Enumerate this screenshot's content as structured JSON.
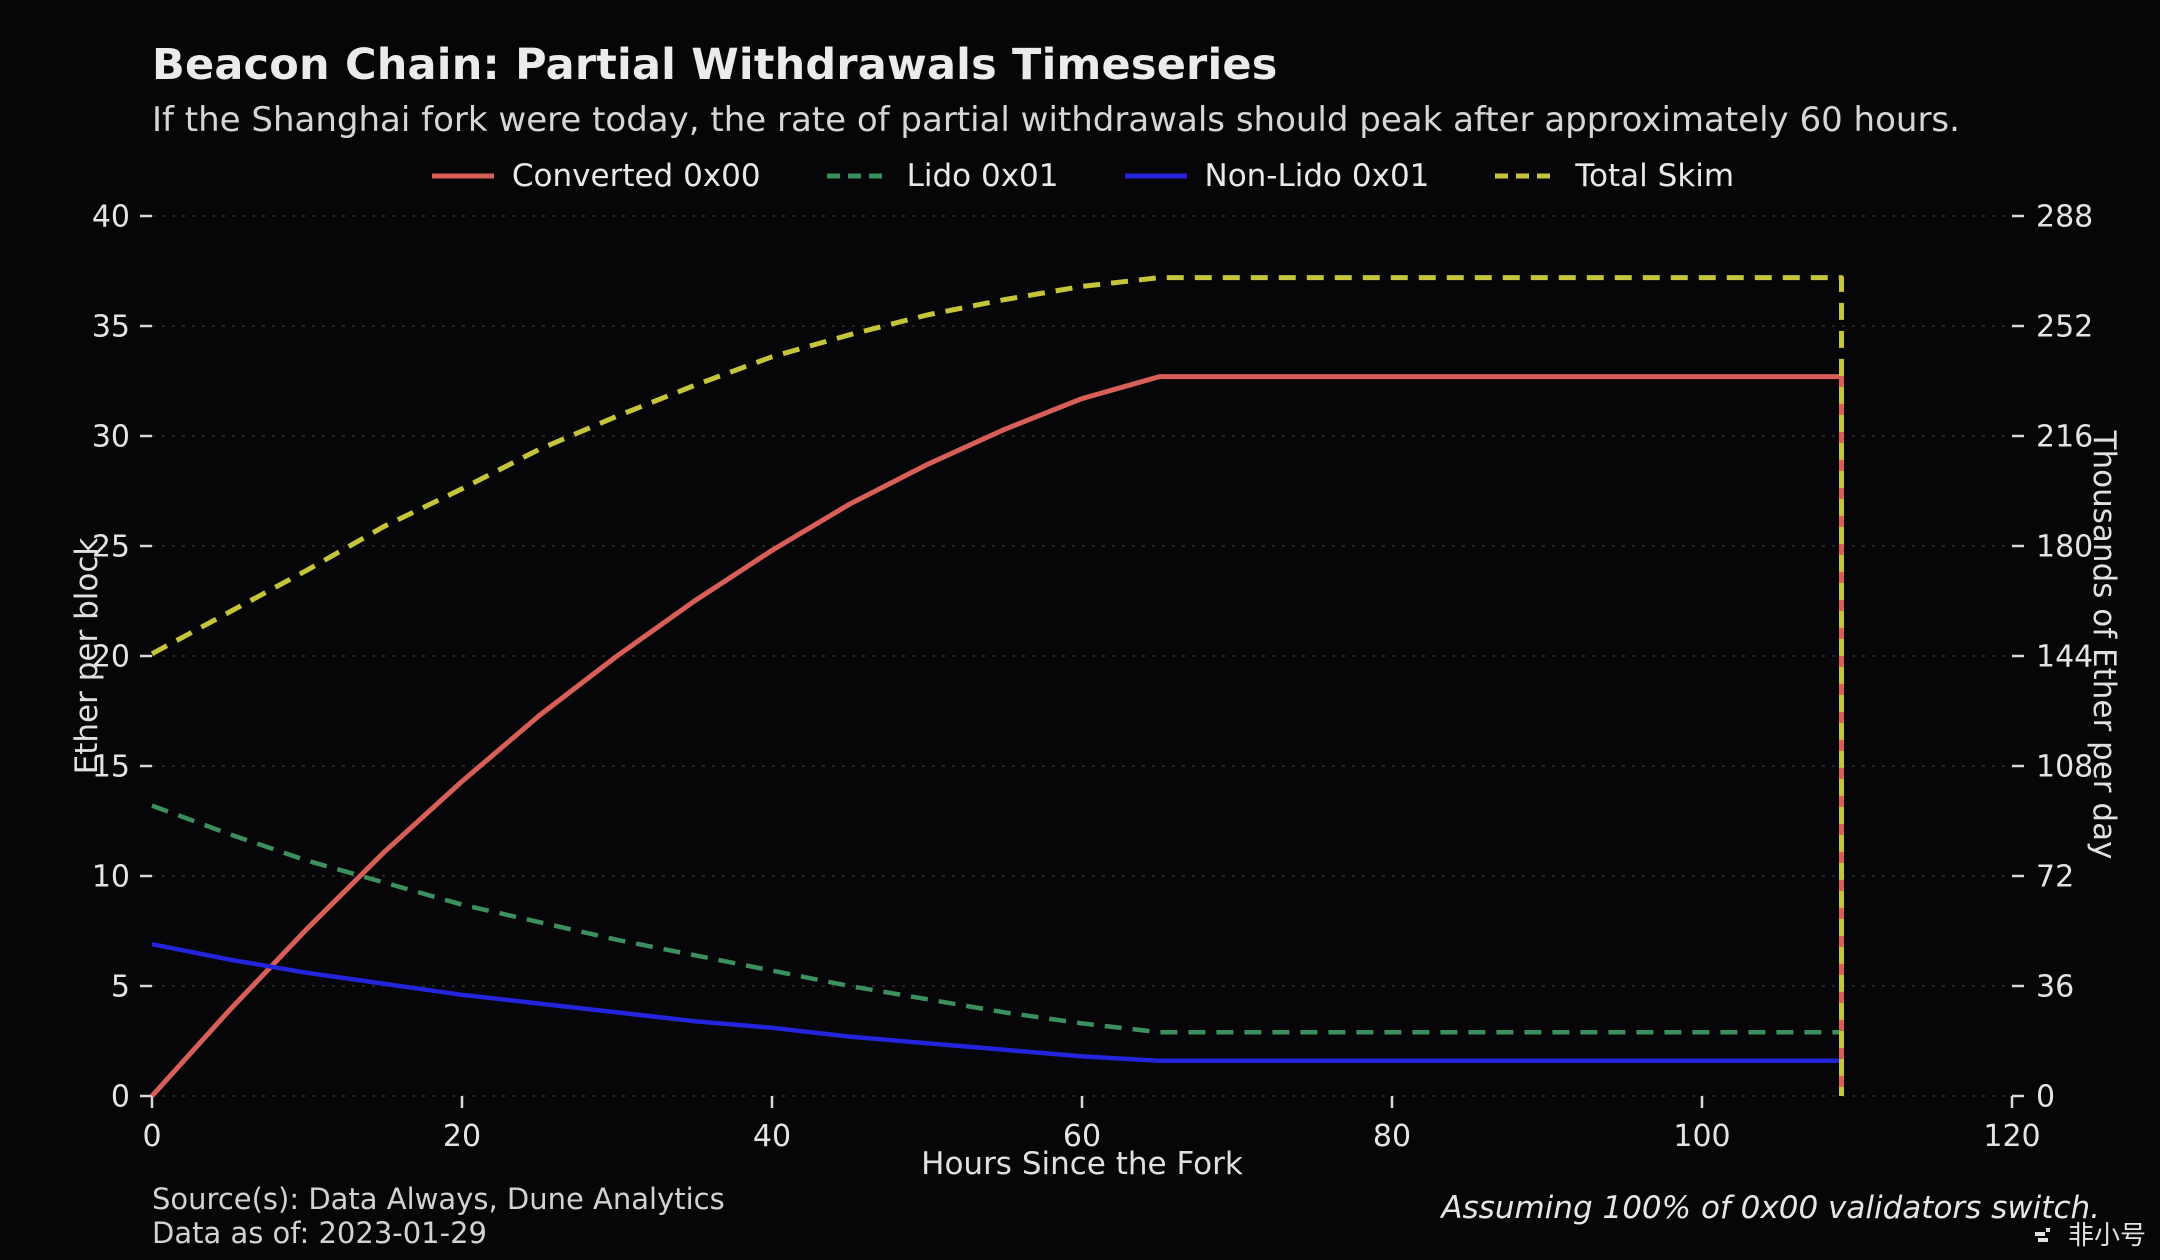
{
  "header": {
    "title": "Beacon Chain: Partial Withdrawals Timeseries",
    "subtitle": "If the Shanghai fork were today, the rate of partial withdrawals should peak after approximately 60 hours."
  },
  "footer": {
    "source": "Source(s): Data Always, Dune Analytics",
    "data_as_of": "Data as of: 2023-01-29",
    "note": "Assuming 100% of 0x00 validators switch.",
    "watermark": "非小号"
  },
  "chart_data": {
    "type": "line",
    "title": "Beacon Chain: Partial Withdrawals Timeseries",
    "subtitle": "If the Shanghai fork were today, the rate of partial withdrawals should peak after approximately 60 hours.",
    "xlabel": "Hours Since the Fork",
    "ylabel_left": "Ether per block",
    "ylabel_right": "Thousands of Ether per day",
    "xlim": [
      0,
      120
    ],
    "ylim_left": [
      0,
      40
    ],
    "ylim_right": [
      0,
      288
    ],
    "x_ticks": [
      0,
      20,
      40,
      60,
      80,
      100,
      120
    ],
    "y_ticks_left": [
      0,
      5,
      10,
      15,
      20,
      25,
      30,
      35,
      40
    ],
    "y_ticks_right": [
      0,
      36,
      72,
      108,
      144,
      180,
      216,
      252,
      288
    ],
    "grid": "horizontal-dashed",
    "legend_position": "top-center",
    "series": [
      {
        "name": "Converted 0x00",
        "color": "#d85f57",
        "dash": "solid",
        "width": 5,
        "x": [
          0,
          5,
          10,
          15,
          20,
          25,
          30,
          35,
          40,
          45,
          50,
          55,
          60,
          65,
          109,
          109
        ],
        "y": [
          0,
          3.9,
          7.6,
          11.1,
          14.3,
          17.3,
          20.0,
          22.5,
          24.8,
          26.9,
          28.7,
          30.3,
          31.7,
          32.7,
          32.7,
          0
        ]
      },
      {
        "name": "Lido 0x01",
        "color": "#3c8f5e",
        "dash": "dashed",
        "width": 4.5,
        "x": [
          0,
          5,
          10,
          15,
          20,
          25,
          30,
          35,
          40,
          45,
          50,
          55,
          60,
          65,
          109
        ],
        "y": [
          13.2,
          11.9,
          10.7,
          9.7,
          8.7,
          7.9,
          7.1,
          6.4,
          5.7,
          5.0,
          4.4,
          3.8,
          3.3,
          2.9,
          2.9
        ]
      },
      {
        "name": "Non-Lido 0x01",
        "color": "#2424dd",
        "dash": "solid",
        "width": 4.5,
        "x": [
          0,
          5,
          10,
          15,
          20,
          25,
          30,
          35,
          40,
          45,
          50,
          55,
          60,
          65,
          109
        ],
        "y": [
          6.9,
          6.2,
          5.6,
          5.1,
          4.6,
          4.2,
          3.8,
          3.4,
          3.1,
          2.7,
          2.4,
          2.1,
          1.8,
          1.6,
          1.6
        ]
      },
      {
        "name": "Total Skim",
        "color": "#c4c53a",
        "dash": "dashed",
        "width": 5,
        "x": [
          0,
          5,
          10,
          15,
          20,
          25,
          30,
          35,
          40,
          45,
          50,
          55,
          60,
          65,
          109,
          109
        ],
        "y": [
          20.1,
          22.0,
          23.9,
          25.9,
          27.6,
          29.4,
          30.9,
          32.3,
          33.6,
          34.6,
          35.5,
          36.2,
          36.8,
          37.2,
          37.2,
          0
        ]
      }
    ]
  }
}
